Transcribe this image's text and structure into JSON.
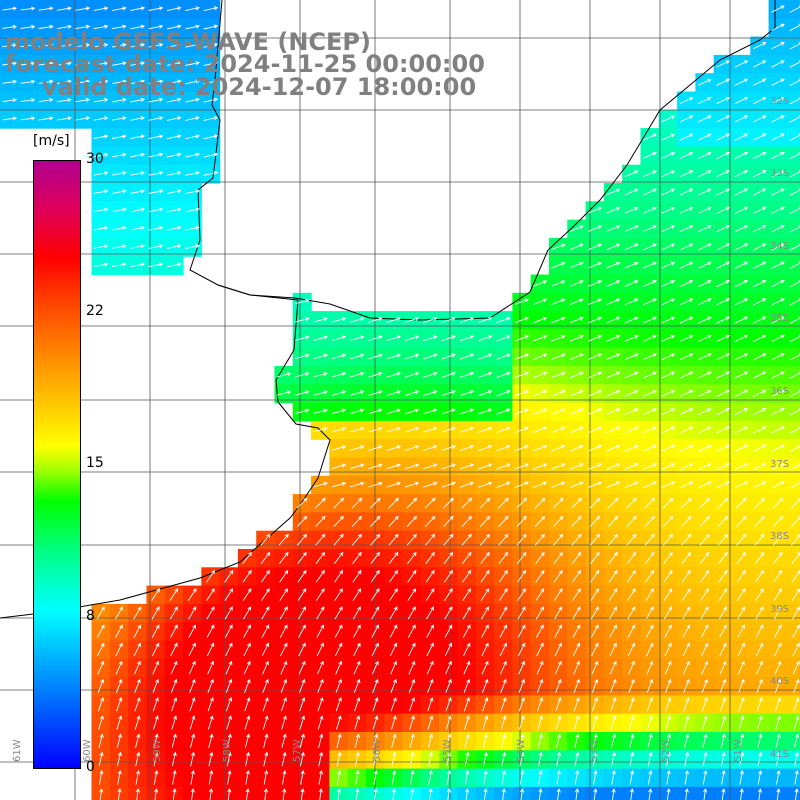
{
  "title": {
    "model": "modelo GEFS-WAVE (NCEP)",
    "forecast": "forecast date: 2024-11-25 00:00:00",
    "valid": "valid date: 2024-12-07 18:00:00"
  },
  "colorbar": {
    "unit": "[m/s]",
    "ticks": [
      "30",
      "22",
      "15",
      "8",
      "0"
    ],
    "colors": [
      "#0000ff",
      "#0080ff",
      "#00ffff",
      "#00ff80",
      "#00ff00",
      "#ffff00",
      "#ff8000",
      "#ff0000",
      "#b00090"
    ]
  },
  "lat_labels": [
    "32S",
    "33S",
    "34S",
    "35S",
    "36S",
    "37S",
    "38S",
    "39S",
    "40S",
    "41S"
  ],
  "lon_labels": [
    "61W",
    "60W",
    "59W",
    "58W",
    "57W",
    "56W",
    "55W",
    "54W",
    "53W",
    "52W",
    "51W"
  ],
  "map_data": {
    "variable": "wind speed",
    "units": "m/s"
  }
}
